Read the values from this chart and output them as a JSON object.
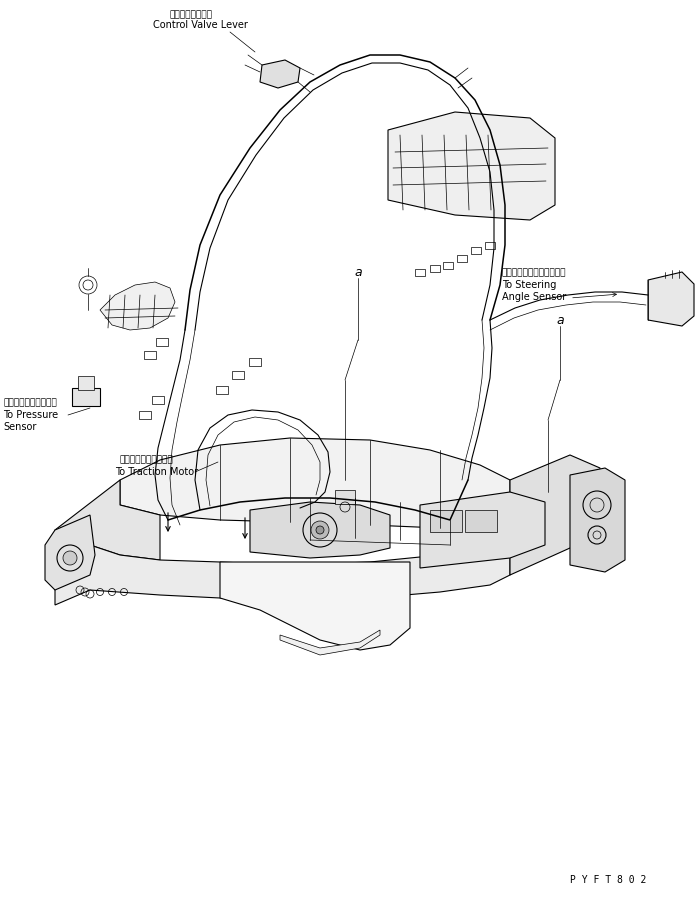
{
  "background_color": "#ffffff",
  "line_color": "#000000",
  "label_color": "#000000",
  "figsize": [
    6.99,
    8.98
  ],
  "dpi": 100,
  "labels": {
    "control_valve_jp": "制御バルブレバー",
    "control_valve_en": "Control Valve Lever",
    "pressure_sensor_jp": "圧力センサージャック",
    "pressure_sensor_line1": "To Pressure",
    "pressure_sensor_line2": "Sensor",
    "traction_motor_jp": "トラクションモーター",
    "traction_motor_en": "To Traction Motor",
    "steering_sensor_jp": "タイヤ角センサージャック",
    "steering_sensor_line1": "To Steering",
    "steering_sensor_line2": "Angle Sensor",
    "label_a_left": "a",
    "label_a_right": "a",
    "part_number": "P Y F T 8 0 2"
  }
}
